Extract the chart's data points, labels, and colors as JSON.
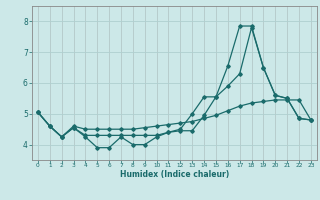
{
  "xlabel": "Humidex (Indice chaleur)",
  "background_color": "#cce8e8",
  "grid_color": "#b0d0d0",
  "line_color": "#1a6b6b",
  "spine_color": "#888888",
  "xlim": [
    -0.5,
    23.5
  ],
  "ylim": [
    3.5,
    8.5
  ],
  "yticks": [
    4,
    5,
    6,
    7,
    8
  ],
  "xticks": [
    0,
    1,
    2,
    3,
    4,
    5,
    6,
    7,
    8,
    9,
    10,
    11,
    12,
    13,
    14,
    15,
    16,
    17,
    18,
    19,
    20,
    21,
    22,
    23
  ],
  "lines": [
    {
      "x": [
        0,
        1,
        2,
        3,
        4,
        5,
        6,
        7,
        8,
        9,
        10,
        11,
        12,
        13,
        14,
        15,
        16,
        17,
        18,
        19,
        20,
        21,
        22,
        23
      ],
      "y": [
        5.05,
        4.6,
        4.25,
        4.55,
        4.25,
        3.9,
        3.9,
        4.25,
        4.0,
        4.0,
        4.25,
        4.4,
        4.45,
        4.45,
        4.95,
        5.55,
        5.9,
        6.3,
        7.8,
        6.5,
        5.6,
        5.5,
        4.85,
        4.8
      ]
    },
    {
      "x": [
        0,
        1,
        2,
        3,
        4,
        5,
        6,
        7,
        8,
        9,
        10,
        11,
        12,
        13,
        14,
        15,
        16,
        17,
        18,
        19,
        20,
        21,
        22,
        23
      ],
      "y": [
        5.05,
        4.6,
        4.25,
        4.55,
        4.3,
        4.3,
        4.3,
        4.3,
        4.3,
        4.3,
        4.3,
        4.4,
        4.5,
        5.0,
        5.55,
        5.55,
        6.55,
        7.85,
        7.85,
        6.5,
        5.6,
        5.5,
        4.85,
        4.8
      ]
    },
    {
      "x": [
        0,
        1,
        2,
        3,
        4,
        5,
        6,
        7,
        8,
        9,
        10,
        11,
        12,
        13,
        14,
        15,
        16,
        17,
        18,
        19,
        20,
        21,
        22,
        23
      ],
      "y": [
        5.05,
        4.6,
        4.25,
        4.6,
        4.5,
        4.5,
        4.5,
        4.5,
        4.5,
        4.55,
        4.6,
        4.65,
        4.7,
        4.75,
        4.85,
        4.95,
        5.1,
        5.25,
        5.35,
        5.4,
        5.45,
        5.45,
        5.45,
        4.8
      ]
    }
  ]
}
